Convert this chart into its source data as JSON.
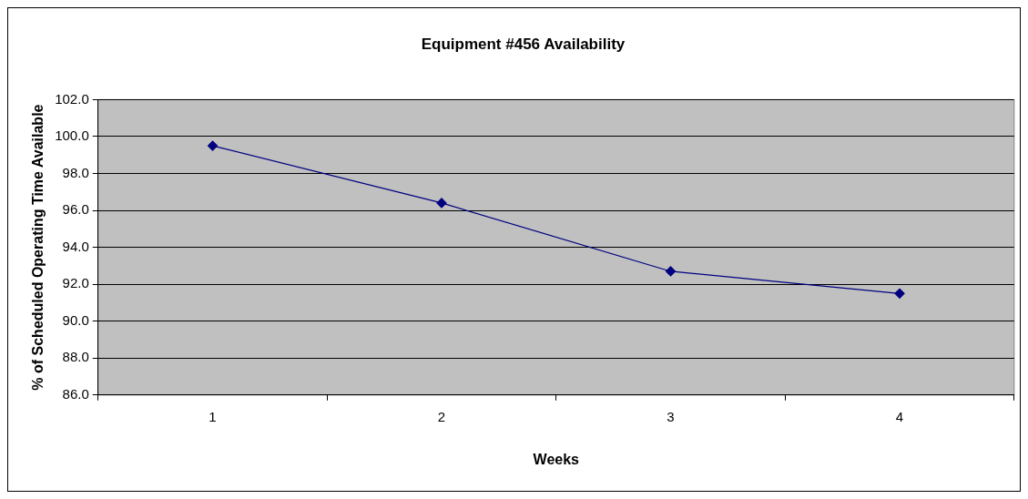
{
  "chart_data": {
    "type": "line",
    "title": "Equipment #456 Availability",
    "xlabel": "Weeks",
    "ylabel": "% of Scheduled Operating Time Available",
    "categories": [
      "1",
      "2",
      "3",
      "4"
    ],
    "series": [
      {
        "color": "#000080",
        "values": [
          99.5,
          96.4,
          92.7,
          91.5
        ]
      }
    ],
    "ylim": [
      86,
      102
    ],
    "yticks": [
      {
        "value": 86,
        "label": "86.0"
      },
      {
        "value": 88,
        "label": "88.0"
      },
      {
        "value": 90,
        "label": "90.0"
      },
      {
        "value": 92,
        "label": "92.0"
      },
      {
        "value": 94,
        "label": "94.0"
      },
      {
        "value": 96,
        "label": "96.0"
      },
      {
        "value": 98,
        "label": "98.0"
      },
      {
        "value": 100,
        "label": "100.0"
      },
      {
        "value": 102,
        "label": "102.0"
      }
    ],
    "grid": "y",
    "legend": false,
    "marker": "diamond",
    "line_style": "solid"
  }
}
